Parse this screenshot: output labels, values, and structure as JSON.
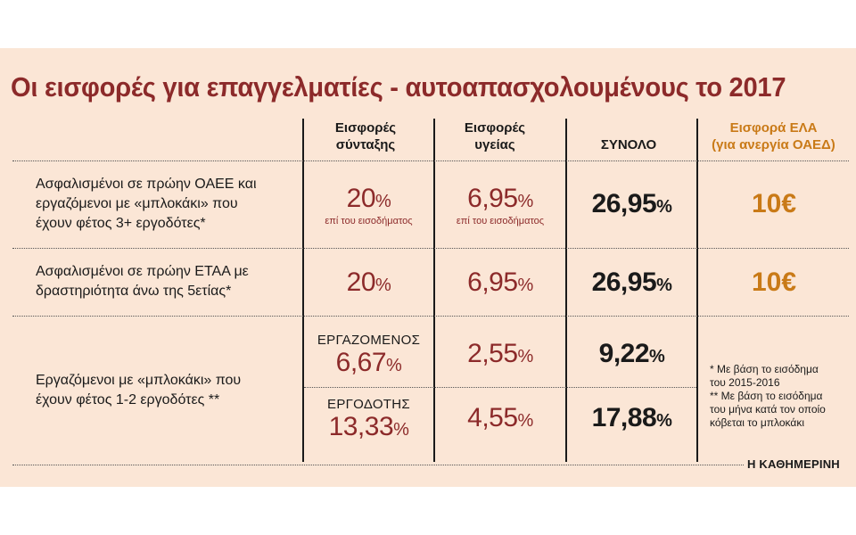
{
  "title": "Οι εισφορές για επαγγελματίες - αυτοαπασχολουμένους το 2017",
  "headers": {
    "pension_line1": "Εισφορές",
    "pension_line2": "σύνταξης",
    "health_line1": "Εισφορές",
    "health_line2": "υγείας",
    "total": "ΣΥΝΟΛΟ",
    "ela_line1": "Εισφορά ΕΛΑ",
    "ela_line2": "(για ανεργία ΟΑΕΔ)"
  },
  "rows": [
    {
      "label_lines": [
        "Ασφαλισμένοι σε πρώην ΟΑΕΕ και",
        "εργαζόμενοι με «μπλοκάκι» που",
        "έχουν φέτος 3+ εργοδότες*"
      ],
      "pension": "20",
      "pension_note": "επί του εισοδήματος",
      "health": "6,95",
      "health_note": "επί του εισοδήματος",
      "total": "26,95",
      "ela": "10€"
    },
    {
      "label_lines": [
        "Ασφαλισμένοι σε πρώην ΕΤΑΑ με",
        "δραστηριότητα άνω της 5ετίας*"
      ],
      "pension": "20",
      "health": "6,95",
      "total": "26,95",
      "ela": "10€"
    },
    {
      "label_lines": [
        "Εργαζόμενοι με «μπλοκάκι» που",
        "έχουν φέτος 1-2 εργοδότες **"
      ],
      "sub_rows": [
        {
          "role": "ΕΡΓΑΖΟΜΕΝΟΣ",
          "pension": "6,67",
          "health": "2,55",
          "total": "9,22"
        },
        {
          "role": "ΕΡΓΟΔΟΤΗΣ",
          "pension": "13,33",
          "health": "4,55",
          "total": "17,88"
        }
      ]
    }
  ],
  "percent_sign": "%",
  "notes": [
    "* Με βάση το εισόδημα",
    "του 2015-2016",
    "** Με βάση το εισόδημα",
    "του μήνα κατά τον οποίο",
    "κόβεται το μπλοκάκι"
  ],
  "source": "Η ΚΑΘΗΜΕΡΙΝΗ",
  "colors": {
    "background": "#fbe6d6",
    "accent_red": "#8c2a2a",
    "accent_orange": "#c97a17",
    "text": "#1a1a1a"
  }
}
